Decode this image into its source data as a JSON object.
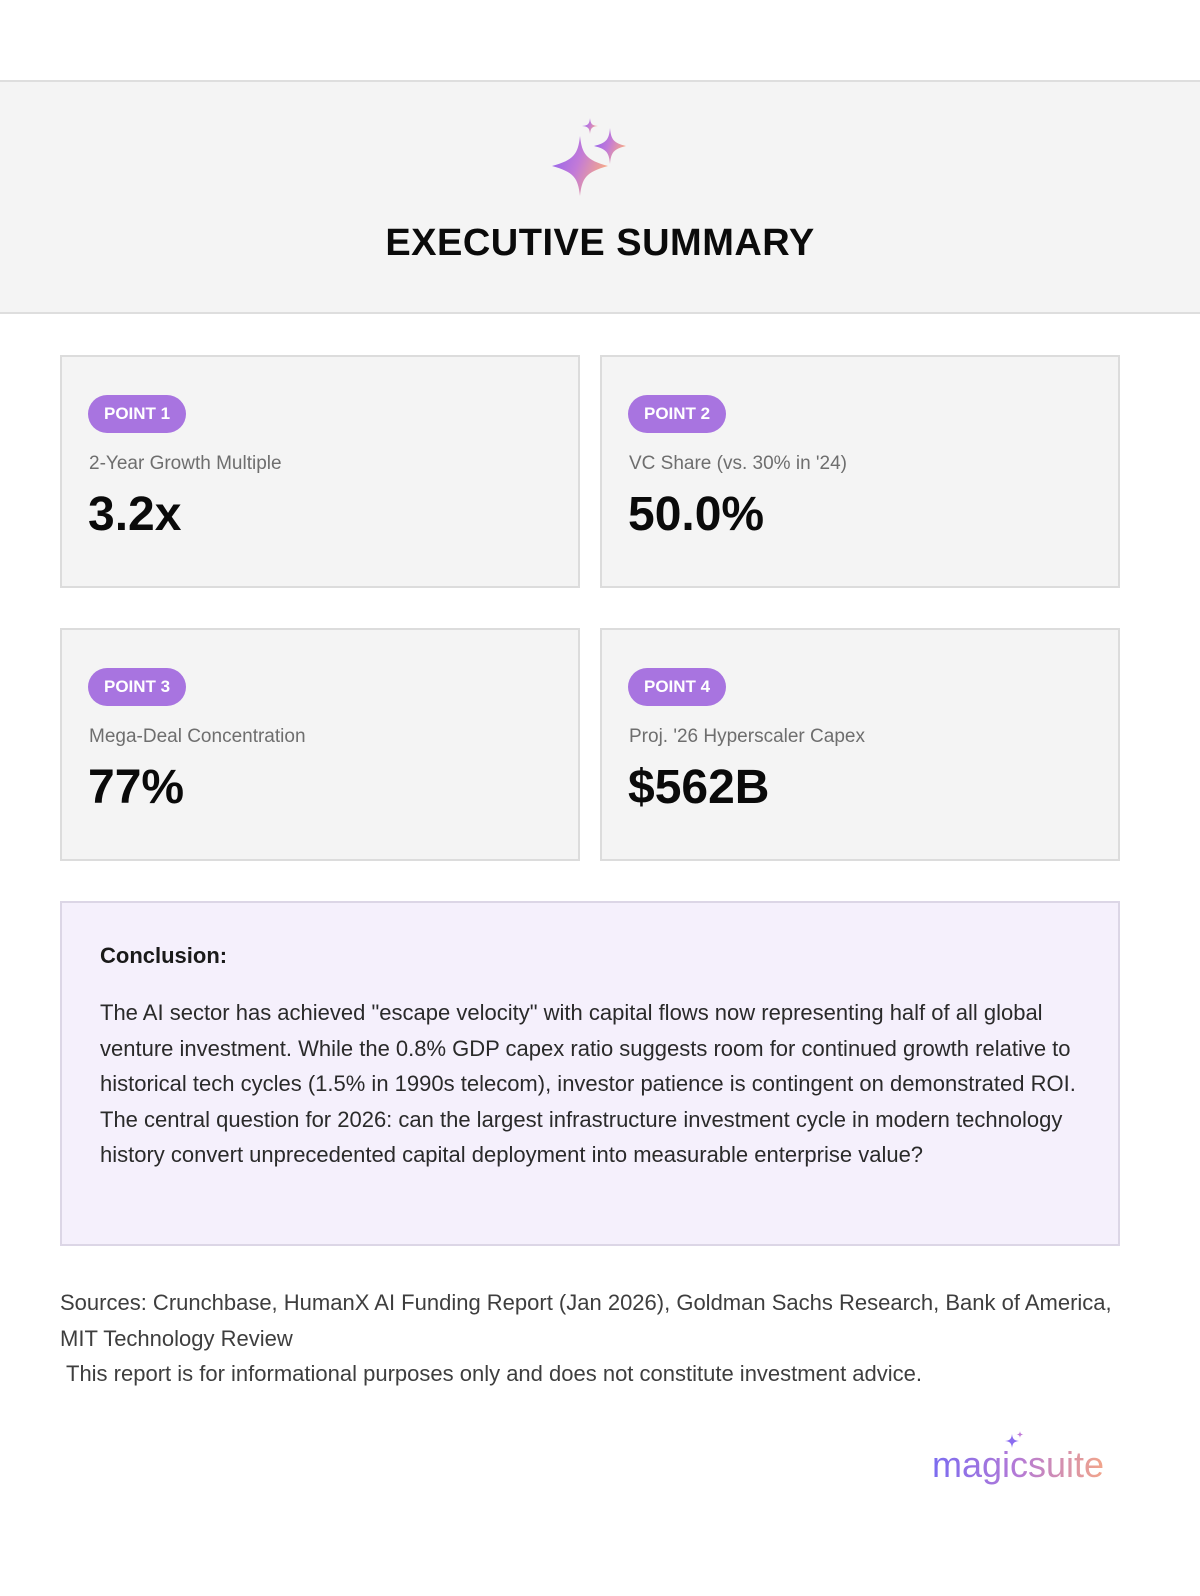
{
  "header": {
    "icon": "sparkles-icon",
    "title": "EXECUTIVE SUMMARY"
  },
  "points": [
    {
      "badge": "POINT 1",
      "label": "2-Year Growth Multiple",
      "value": "3.2x"
    },
    {
      "badge": "POINT 2",
      "label": "VC Share (vs. 30% in '24)",
      "value": "50.0%"
    },
    {
      "badge": "POINT 3",
      "label": "Mega-Deal Concentration",
      "value": "77%"
    },
    {
      "badge": "POINT 4",
      "label": "Proj. '26 Hyperscaler Capex",
      "value": "$562B"
    }
  ],
  "conclusion": {
    "heading": "Conclusion:",
    "body": "The AI sector has achieved \"escape velocity\" with capital flows now representing half of all global venture investment. While the 0.8% GDP capex ratio suggests room for continued growth relative to historical tech cycles (1.5% in 1990s telecom), investor patience is contingent on demonstrated ROI. The central question for 2026: can the largest infrastructure investment cycle in modern technology history convert unprecedented capital deployment into measurable enterprise value?"
  },
  "footer": {
    "sources": "Sources: Crunchbase, HumanX AI Funding Report (Jan 2026), Goldman Sachs Research, Bank of America, MIT Technology Review",
    "disclaimer": "This report is for informational purposes only and does not constitute investment advice."
  },
  "brand": {
    "logo_text": "magicsuite",
    "logo_icon": "sparkles-icon"
  },
  "colors": {
    "badge": "#a874e0",
    "conclusion_bg": "#f5f0fc",
    "gradient_start": "#7b6cf0",
    "gradient_end": "#f2a58a"
  }
}
